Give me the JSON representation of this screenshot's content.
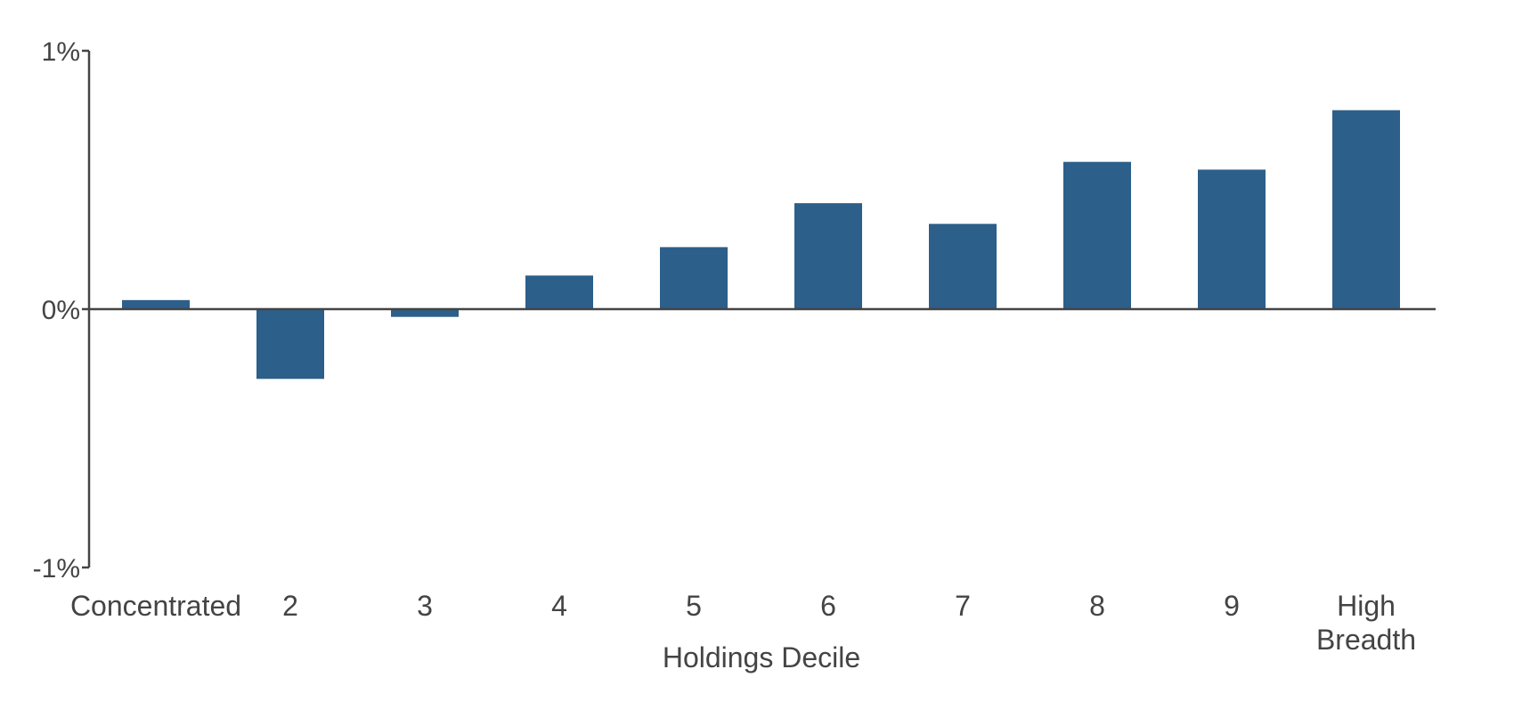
{
  "chart_data": {
    "type": "bar",
    "categories": [
      [
        "Concentrated"
      ],
      [
        "2"
      ],
      [
        "3"
      ],
      [
        "4"
      ],
      [
        "5"
      ],
      [
        "6"
      ],
      [
        "7"
      ],
      [
        "8"
      ],
      [
        "9"
      ],
      [
        "High",
        "Breadth"
      ]
    ],
    "values": [
      0.035,
      -0.27,
      -0.03,
      0.13,
      0.24,
      0.41,
      0.33,
      0.57,
      0.54,
      0.77
    ],
    "xlabel": "Holdings Decile",
    "ylabel": "",
    "ylim": [
      -1,
      1
    ],
    "yticks": [
      {
        "value": 1,
        "label": "1%"
      },
      {
        "value": 0,
        "label": "0%"
      },
      {
        "value": -1,
        "label": "-1%"
      }
    ],
    "bar_color": "#2c5f8a",
    "axis_color": "#444444",
    "grid": false,
    "legend": "none"
  }
}
